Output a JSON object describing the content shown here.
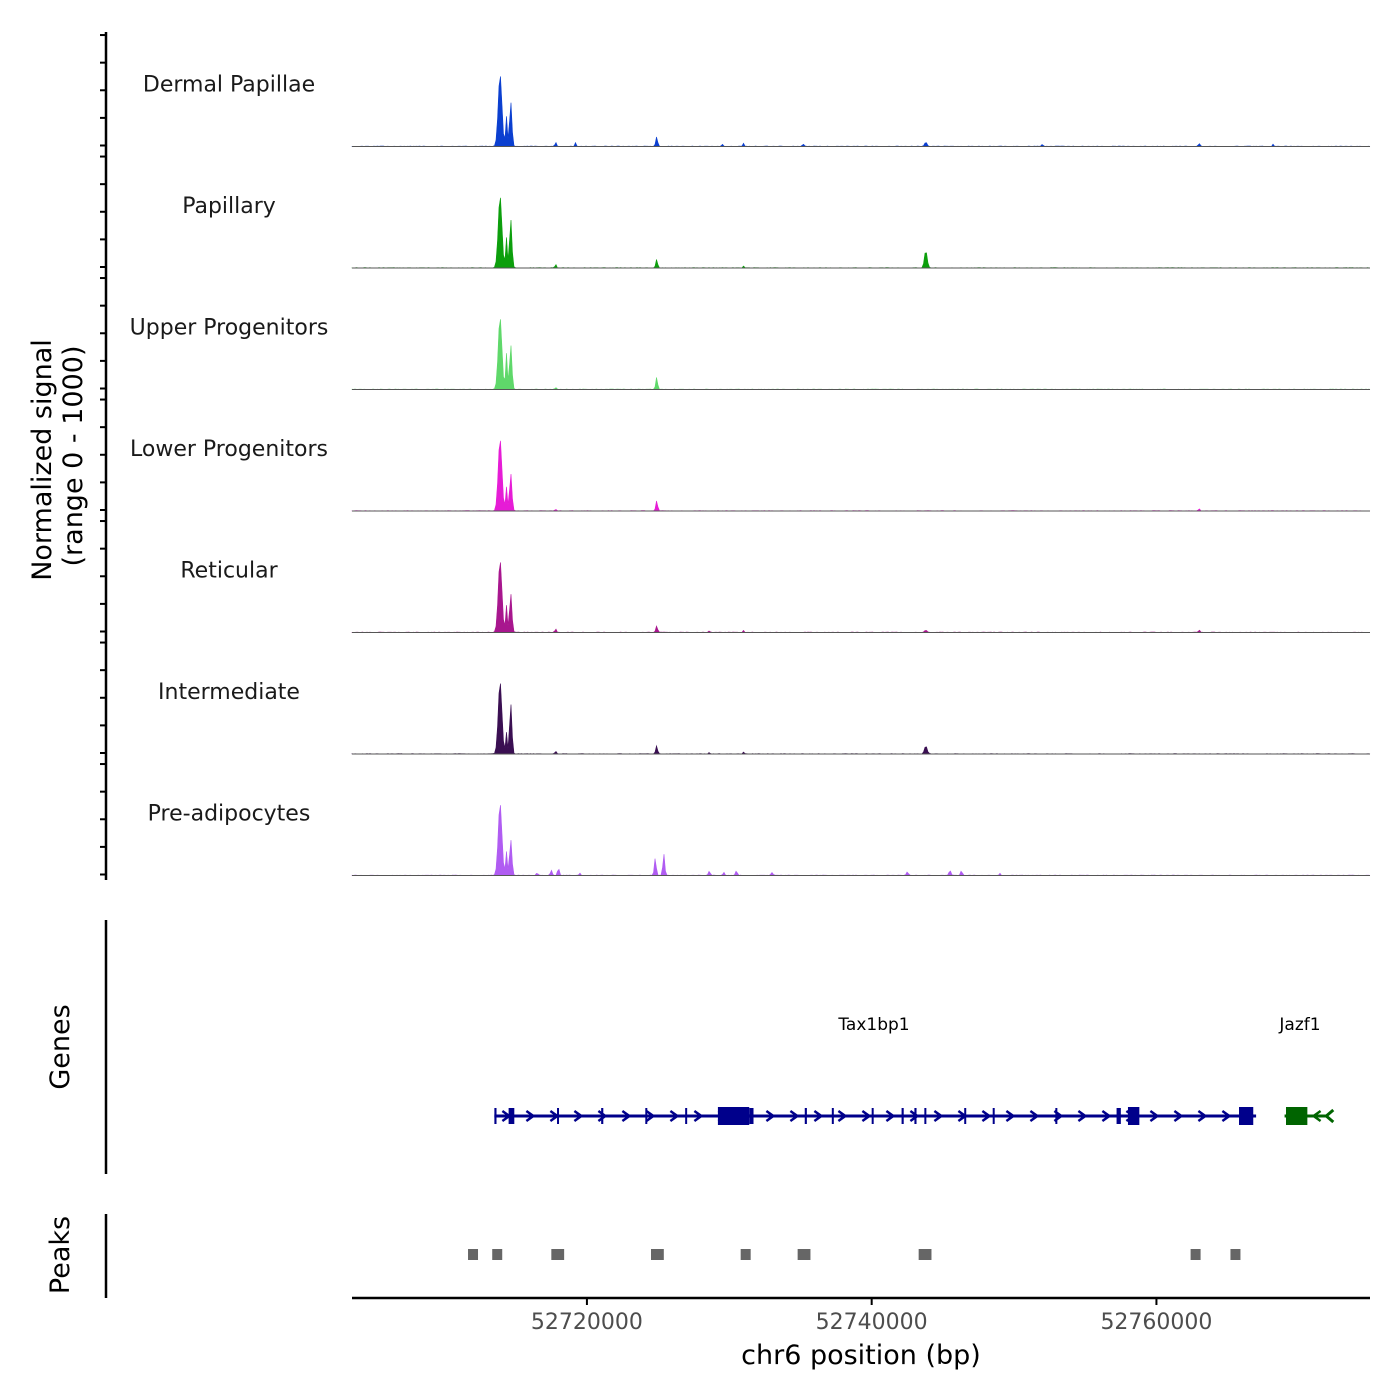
{
  "chart_data": {
    "type": "area",
    "title": "",
    "chromosome": "chr6",
    "xlabel": "chr6 position (bp)",
    "ylabel_line1": "Normalized signal",
    "ylabel_line2": "(range 0 - 1000)",
    "xlim": [
      52703500,
      52775000
    ],
    "x_ticks": [
      52720000,
      52740000,
      52760000
    ],
    "x_tick_labels": [
      "52720000",
      "52740000",
      "52760000"
    ],
    "ylim": [
      0,
      1000
    ],
    "series": [
      {
        "name": "Dermal Papillae",
        "color": "#0b3fd0",
        "peaks": [
          {
            "pos": 52713900,
            "height": 1000,
            "width": 400
          },
          {
            "pos": 52714350,
            "height": 420,
            "width": 200
          },
          {
            "pos": 52714650,
            "height": 620,
            "width": 250
          },
          {
            "pos": 52717800,
            "height": 60,
            "width": 150
          },
          {
            "pos": 52719200,
            "height": 50,
            "width": 150
          },
          {
            "pos": 52724900,
            "height": 130,
            "width": 200
          },
          {
            "pos": 52729500,
            "height": 30,
            "width": 150
          },
          {
            "pos": 52731000,
            "height": 40,
            "width": 150
          },
          {
            "pos": 52735200,
            "height": 30,
            "width": 200
          },
          {
            "pos": 52743800,
            "height": 60,
            "width": 250
          },
          {
            "pos": 52752000,
            "height": 30,
            "width": 150
          },
          {
            "pos": 52763000,
            "height": 40,
            "width": 200
          },
          {
            "pos": 52768200,
            "height": 30,
            "width": 150
          }
        ]
      },
      {
        "name": "Papillary",
        "color": "#0c9f0c",
        "peaks": [
          {
            "pos": 52713900,
            "height": 1000,
            "width": 400
          },
          {
            "pos": 52714350,
            "height": 420,
            "width": 200
          },
          {
            "pos": 52714650,
            "height": 680,
            "width": 250
          },
          {
            "pos": 52717800,
            "height": 50,
            "width": 150
          },
          {
            "pos": 52724900,
            "height": 120,
            "width": 200
          },
          {
            "pos": 52731000,
            "height": 25,
            "width": 150
          },
          {
            "pos": 52743800,
            "height": 240,
            "width": 300
          }
        ]
      },
      {
        "name": "Upper Progenitors",
        "color": "#5fd86a",
        "peaks": [
          {
            "pos": 52713900,
            "height": 1000,
            "width": 400
          },
          {
            "pos": 52714350,
            "height": 500,
            "width": 200
          },
          {
            "pos": 52714650,
            "height": 620,
            "width": 250
          },
          {
            "pos": 52717800,
            "height": 30,
            "width": 150
          },
          {
            "pos": 52724900,
            "height": 170,
            "width": 200
          }
        ]
      },
      {
        "name": "Lower Progenitors",
        "color": "#e61cd6",
        "peaks": [
          {
            "pos": 52713900,
            "height": 1000,
            "width": 400
          },
          {
            "pos": 52714350,
            "height": 330,
            "width": 200
          },
          {
            "pos": 52714650,
            "height": 520,
            "width": 250
          },
          {
            "pos": 52717800,
            "height": 20,
            "width": 150
          },
          {
            "pos": 52724900,
            "height": 140,
            "width": 200
          },
          {
            "pos": 52763000,
            "height": 25,
            "width": 200
          }
        ]
      },
      {
        "name": "Reticular",
        "color": "#a8168e",
        "peaks": [
          {
            "pos": 52713900,
            "height": 1000,
            "width": 400
          },
          {
            "pos": 52714350,
            "height": 380,
            "width": 200
          },
          {
            "pos": 52714650,
            "height": 540,
            "width": 250
          },
          {
            "pos": 52717800,
            "height": 50,
            "width": 150
          },
          {
            "pos": 52724900,
            "height": 90,
            "width": 200
          },
          {
            "pos": 52728600,
            "height": 20,
            "width": 150
          },
          {
            "pos": 52731000,
            "height": 25,
            "width": 150
          },
          {
            "pos": 52743800,
            "height": 30,
            "width": 250
          },
          {
            "pos": 52763000,
            "height": 30,
            "width": 200
          }
        ]
      },
      {
        "name": "Intermediate",
        "color": "#3a0f52",
        "peaks": [
          {
            "pos": 52713900,
            "height": 1000,
            "width": 400
          },
          {
            "pos": 52714350,
            "height": 300,
            "width": 200
          },
          {
            "pos": 52714650,
            "height": 700,
            "width": 250
          },
          {
            "pos": 52717800,
            "height": 40,
            "width": 150
          },
          {
            "pos": 52724900,
            "height": 110,
            "width": 200
          },
          {
            "pos": 52728600,
            "height": 20,
            "width": 150
          },
          {
            "pos": 52731000,
            "height": 25,
            "width": 150
          },
          {
            "pos": 52743800,
            "height": 110,
            "width": 300
          }
        ]
      },
      {
        "name": "Pre-adipocytes",
        "color": "#b05cf2",
        "peaks": [
          {
            "pos": 52713900,
            "height": 1000,
            "width": 400
          },
          {
            "pos": 52714350,
            "height": 330,
            "width": 200
          },
          {
            "pos": 52714650,
            "height": 500,
            "width": 250
          },
          {
            "pos": 52716500,
            "height": 40,
            "width": 150
          },
          {
            "pos": 52717500,
            "height": 70,
            "width": 200
          },
          {
            "pos": 52718000,
            "height": 100,
            "width": 200
          },
          {
            "pos": 52719500,
            "height": 30,
            "width": 150
          },
          {
            "pos": 52724800,
            "height": 240,
            "width": 200
          },
          {
            "pos": 52725400,
            "height": 300,
            "width": 200
          },
          {
            "pos": 52728600,
            "height": 60,
            "width": 200
          },
          {
            "pos": 52729600,
            "height": 50,
            "width": 150
          },
          {
            "pos": 52730500,
            "height": 60,
            "width": 200
          },
          {
            "pos": 52733000,
            "height": 40,
            "width": 200
          },
          {
            "pos": 52742500,
            "height": 50,
            "width": 200
          },
          {
            "pos": 52745500,
            "height": 70,
            "width": 200
          },
          {
            "pos": 52746300,
            "height": 60,
            "width": 200
          },
          {
            "pos": 52749000,
            "height": 30,
            "width": 150
          }
        ]
      }
    ],
    "genes_track_label": "Genes",
    "genes": [
      {
        "name": "Tax1bp1",
        "strand": "+",
        "start": 52713500,
        "end": 52767000,
        "color": "#00008b",
        "exons": [
          [
            52713500,
            52713650
          ],
          [
            52714500,
            52714900
          ],
          [
            52717900,
            52718000
          ],
          [
            52721000,
            52721150
          ],
          [
            52724100,
            52724200
          ],
          [
            52726900,
            52727000
          ],
          [
            52729200,
            52731400
          ],
          [
            52731400,
            52731700
          ],
          [
            52735300,
            52735450
          ],
          [
            52737200,
            52737300
          ],
          [
            52740000,
            52740100
          ],
          [
            52742100,
            52742250
          ],
          [
            52743000,
            52743150
          ],
          [
            52743700,
            52743800
          ],
          [
            52746500,
            52746600
          ],
          [
            52748500,
            52748600
          ],
          [
            52752900,
            52753000
          ],
          [
            52757200,
            52757500
          ],
          [
            52758000,
            52758800
          ],
          [
            52765800,
            52766800
          ]
        ]
      },
      {
        "name": "Jazf1",
        "strand": "-",
        "start": 52769000,
        "end": 52772000,
        "color": "#006400",
        "exons": [
          [
            52769100,
            52770600
          ]
        ]
      }
    ],
    "peaks_track_label": "Peaks",
    "peaks_color": "#666666",
    "peak_regions": [
      [
        52711700,
        52712300
      ],
      [
        52713400,
        52714000
      ],
      [
        52717500,
        52718400
      ],
      [
        52724500,
        52725400
      ],
      [
        52730800,
        52731500
      ],
      [
        52734800,
        52735700
      ],
      [
        52743300,
        52744200
      ],
      [
        52762400,
        52763100
      ],
      [
        52765200,
        52765900
      ]
    ]
  }
}
